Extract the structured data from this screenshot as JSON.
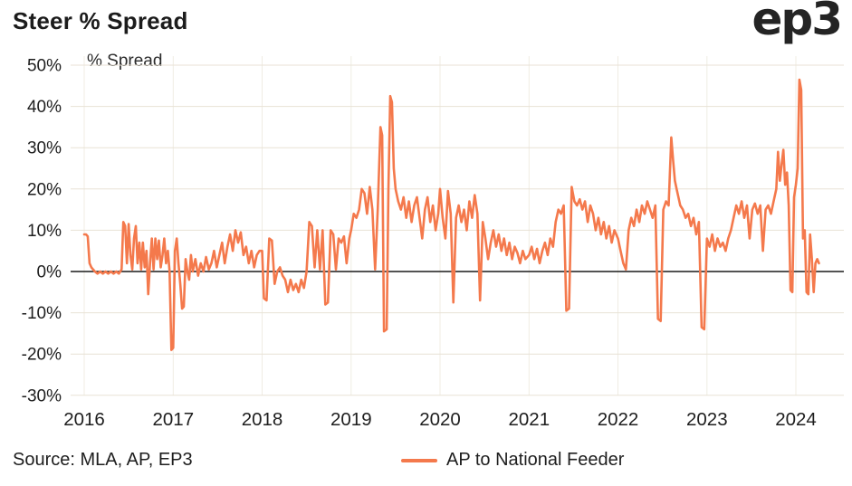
{
  "header": {
    "title": "Steer % Spread",
    "logo": "ep3"
  },
  "colors": {
    "line": "#F4794C",
    "grid": "#E8E2D6",
    "grid_vertical": "#F0ECE3",
    "axis": "#1A1A1A",
    "text": "#1E1E1E"
  },
  "footer": {
    "source": "Source: MLA, AP, EP3",
    "legend_label": "AP to National Feeder"
  },
  "chart_data": {
    "type": "line",
    "title": "Steer % Spread",
    "ylabel": "% Spread",
    "xlabel": "",
    "ylim": [
      -30,
      50
    ],
    "grid": "horizontal",
    "zero_line": true,
    "legend_position": "bottom-center",
    "legend": [
      "AP to National Feeder"
    ],
    "y_ticks": {
      "values": [
        50,
        40,
        30,
        20,
        10,
        0,
        -10,
        -20,
        -30
      ],
      "labels": [
        "50%",
        "40%",
        "30%",
        "20%",
        "10%",
        "0%",
        "-10%",
        "-20%",
        "-30%"
      ]
    },
    "x_ticks": {
      "values": [
        2016,
        2017,
        2018,
        2019,
        2020,
        2021,
        2022,
        2023,
        2024
      ],
      "labels": [
        "2016",
        "2017",
        "2018",
        "2019",
        "2020",
        "2021",
        "2022",
        "2023",
        "2024"
      ]
    },
    "series": [
      {
        "name": "AP to National Feeder",
        "color": "#F4794C",
        "points": [
          [
            2016.0,
            9
          ],
          [
            2016.02,
            9
          ],
          [
            2016.04,
            8.5
          ],
          [
            2016.06,
            2
          ],
          [
            2016.08,
            1
          ],
          [
            2016.1,
            0.5
          ],
          [
            2016.12,
            0
          ],
          [
            2016.15,
            -0.5
          ],
          [
            2016.18,
            0
          ],
          [
            2016.21,
            -0.5
          ],
          [
            2016.24,
            0
          ],
          [
            2016.27,
            -0.5
          ],
          [
            2016.3,
            0
          ],
          [
            2016.33,
            -0.5
          ],
          [
            2016.36,
            0
          ],
          [
            2016.39,
            -0.5
          ],
          [
            2016.42,
            0.5
          ],
          [
            2016.44,
            12
          ],
          [
            2016.46,
            11
          ],
          [
            2016.48,
            2
          ],
          [
            2016.5,
            11.5
          ],
          [
            2016.52,
            4
          ],
          [
            2016.54,
            0.5
          ],
          [
            2016.56,
            8
          ],
          [
            2016.58,
            11
          ],
          [
            2016.6,
            2
          ],
          [
            2016.62,
            7
          ],
          [
            2016.64,
            0.5
          ],
          [
            2016.66,
            7
          ],
          [
            2016.68,
            1
          ],
          [
            2016.7,
            5
          ],
          [
            2016.72,
            -5.5
          ],
          [
            2016.74,
            2
          ],
          [
            2016.76,
            8
          ],
          [
            2016.78,
            0.5
          ],
          [
            2016.8,
            8
          ],
          [
            2016.82,
            3
          ],
          [
            2016.84,
            7.5
          ],
          [
            2016.86,
            1
          ],
          [
            2016.88,
            4
          ],
          [
            2016.9,
            8
          ],
          [
            2016.92,
            2
          ],
          [
            2016.94,
            5
          ],
          [
            2016.96,
            0
          ],
          [
            2016.98,
            -19
          ],
          [
            2017.0,
            -18.5
          ],
          [
            2017.02,
            5
          ],
          [
            2017.04,
            8
          ],
          [
            2017.06,
            2
          ],
          [
            2017.08,
            -3
          ],
          [
            2017.1,
            -9
          ],
          [
            2017.12,
            -8.5
          ],
          [
            2017.14,
            3
          ],
          [
            2017.16,
            0
          ],
          [
            2017.18,
            -2
          ],
          [
            2017.2,
            4
          ],
          [
            2017.22,
            0
          ],
          [
            2017.25,
            3
          ],
          [
            2017.28,
            -1
          ],
          [
            2017.31,
            2
          ],
          [
            2017.34,
            0
          ],
          [
            2017.37,
            3.5
          ],
          [
            2017.4,
            0.5
          ],
          [
            2017.43,
            2
          ],
          [
            2017.46,
            5
          ],
          [
            2017.49,
            1
          ],
          [
            2017.52,
            4
          ],
          [
            2017.55,
            7
          ],
          [
            2017.58,
            2
          ],
          [
            2017.61,
            6
          ],
          [
            2017.64,
            9
          ],
          [
            2017.67,
            5
          ],
          [
            2017.7,
            10
          ],
          [
            2017.73,
            7
          ],
          [
            2017.76,
            9.5
          ],
          [
            2017.79,
            4
          ],
          [
            2017.82,
            6
          ],
          [
            2017.85,
            2
          ],
          [
            2017.88,
            5
          ],
          [
            2017.91,
            1
          ],
          [
            2017.94,
            4
          ],
          [
            2017.97,
            5
          ],
          [
            2018.0,
            5
          ],
          [
            2018.02,
            -6.5
          ],
          [
            2018.05,
            -7
          ],
          [
            2018.08,
            8
          ],
          [
            2018.11,
            7.5
          ],
          [
            2018.14,
            -3
          ],
          [
            2018.17,
            0
          ],
          [
            2018.2,
            1
          ],
          [
            2018.23,
            -1
          ],
          [
            2018.26,
            -2
          ],
          [
            2018.29,
            -5
          ],
          [
            2018.32,
            -2
          ],
          [
            2018.35,
            -4.5
          ],
          [
            2018.38,
            -3
          ],
          [
            2018.41,
            -5
          ],
          [
            2018.44,
            -2
          ],
          [
            2018.47,
            -4
          ],
          [
            2018.5,
            0
          ],
          [
            2018.53,
            12
          ],
          [
            2018.56,
            11
          ],
          [
            2018.59,
            1
          ],
          [
            2018.62,
            10
          ],
          [
            2018.65,
            0.5
          ],
          [
            2018.68,
            10
          ],
          [
            2018.71,
            -8
          ],
          [
            2018.74,
            -7.5
          ],
          [
            2018.77,
            10
          ],
          [
            2018.8,
            9
          ],
          [
            2018.83,
            0.5
          ],
          [
            2018.86,
            8
          ],
          [
            2018.89,
            7
          ],
          [
            2018.92,
            8.5
          ],
          [
            2018.95,
            2
          ],
          [
            2018.98,
            8
          ],
          [
            2019.0,
            10
          ],
          [
            2019.03,
            14
          ],
          [
            2019.06,
            13
          ],
          [
            2019.09,
            15
          ],
          [
            2019.12,
            20
          ],
          [
            2019.15,
            19
          ],
          [
            2019.18,
            14
          ],
          [
            2019.21,
            20.5
          ],
          [
            2019.24,
            15
          ],
          [
            2019.27,
            0.5
          ],
          [
            2019.3,
            15
          ],
          [
            2019.33,
            35
          ],
          [
            2019.35,
            33
          ],
          [
            2019.37,
            -14.5
          ],
          [
            2019.4,
            -14
          ],
          [
            2019.42,
            20
          ],
          [
            2019.44,
            42.5
          ],
          [
            2019.46,
            41
          ],
          [
            2019.48,
            25
          ],
          [
            2019.5,
            20
          ],
          [
            2019.53,
            17
          ],
          [
            2019.56,
            15
          ],
          [
            2019.59,
            18
          ],
          [
            2019.62,
            13
          ],
          [
            2019.65,
            17
          ],
          [
            2019.68,
            12
          ],
          [
            2019.71,
            16
          ],
          [
            2019.74,
            18
          ],
          [
            2019.77,
            13
          ],
          [
            2019.8,
            8
          ],
          [
            2019.83,
            15
          ],
          [
            2019.86,
            18
          ],
          [
            2019.89,
            12
          ],
          [
            2019.92,
            16
          ],
          [
            2019.95,
            10
          ],
          [
            2019.98,
            14
          ],
          [
            2020.0,
            20
          ],
          [
            2020.03,
            13
          ],
          [
            2020.06,
            8
          ],
          [
            2020.09,
            19.5
          ],
          [
            2020.12,
            14
          ],
          [
            2020.15,
            -7.5
          ],
          [
            2020.18,
            13
          ],
          [
            2020.21,
            16
          ],
          [
            2020.24,
            12
          ],
          [
            2020.27,
            15
          ],
          [
            2020.3,
            10
          ],
          [
            2020.33,
            17
          ],
          [
            2020.36,
            13
          ],
          [
            2020.39,
            18.5
          ],
          [
            2020.42,
            14
          ],
          [
            2020.45,
            -7
          ],
          [
            2020.48,
            12
          ],
          [
            2020.51,
            8
          ],
          [
            2020.54,
            3
          ],
          [
            2020.57,
            7
          ],
          [
            2020.6,
            10
          ],
          [
            2020.63,
            6
          ],
          [
            2020.66,
            9
          ],
          [
            2020.69,
            5
          ],
          [
            2020.72,
            8
          ],
          [
            2020.75,
            4
          ],
          [
            2020.78,
            7
          ],
          [
            2020.81,
            3
          ],
          [
            2020.84,
            6
          ],
          [
            2020.87,
            4.5
          ],
          [
            2020.9,
            2
          ],
          [
            2020.93,
            5
          ],
          [
            2020.96,
            3
          ],
          [
            2021.0,
            4
          ],
          [
            2021.03,
            6
          ],
          [
            2021.06,
            3
          ],
          [
            2021.09,
            5.5
          ],
          [
            2021.12,
            2
          ],
          [
            2021.15,
            5
          ],
          [
            2021.18,
            7
          ],
          [
            2021.21,
            4
          ],
          [
            2021.24,
            8
          ],
          [
            2021.27,
            6
          ],
          [
            2021.3,
            12
          ],
          [
            2021.33,
            15
          ],
          [
            2021.36,
            14
          ],
          [
            2021.39,
            16
          ],
          [
            2021.42,
            -9.5
          ],
          [
            2021.45,
            -9
          ],
          [
            2021.48,
            20.5
          ],
          [
            2021.51,
            17
          ],
          [
            2021.54,
            16
          ],
          [
            2021.57,
            17.5
          ],
          [
            2021.6,
            15
          ],
          [
            2021.63,
            17
          ],
          [
            2021.66,
            12
          ],
          [
            2021.69,
            16
          ],
          [
            2021.72,
            14
          ],
          [
            2021.75,
            10
          ],
          [
            2021.78,
            13
          ],
          [
            2021.81,
            9
          ],
          [
            2021.84,
            12
          ],
          [
            2021.87,
            8
          ],
          [
            2021.9,
            11
          ],
          [
            2021.93,
            7
          ],
          [
            2021.96,
            10
          ],
          [
            2022.0,
            8
          ],
          [
            2022.03,
            5
          ],
          [
            2022.06,
            2
          ],
          [
            2022.09,
            0.5
          ],
          [
            2022.12,
            10
          ],
          [
            2022.15,
            13
          ],
          [
            2022.18,
            11
          ],
          [
            2022.21,
            15
          ],
          [
            2022.24,
            12
          ],
          [
            2022.27,
            16
          ],
          [
            2022.3,
            14
          ],
          [
            2022.33,
            17
          ],
          [
            2022.36,
            15
          ],
          [
            2022.39,
            13
          ],
          [
            2022.42,
            16
          ],
          [
            2022.45,
            -11.5
          ],
          [
            2022.48,
            -12
          ],
          [
            2022.51,
            15
          ],
          [
            2022.54,
            17
          ],
          [
            2022.57,
            16
          ],
          [
            2022.6,
            32.5
          ],
          [
            2022.62,
            27
          ],
          [
            2022.64,
            22
          ],
          [
            2022.66,
            20
          ],
          [
            2022.68,
            18
          ],
          [
            2022.7,
            16
          ],
          [
            2022.73,
            15
          ],
          [
            2022.76,
            13
          ],
          [
            2022.79,
            14
          ],
          [
            2022.82,
            11
          ],
          [
            2022.85,
            13
          ],
          [
            2022.88,
            9
          ],
          [
            2022.91,
            12
          ],
          [
            2022.94,
            -13.5
          ],
          [
            2022.97,
            -14
          ],
          [
            2023.0,
            8
          ],
          [
            2023.03,
            6
          ],
          [
            2023.06,
            9
          ],
          [
            2023.09,
            5
          ],
          [
            2023.12,
            8
          ],
          [
            2023.15,
            6
          ],
          [
            2023.18,
            7
          ],
          [
            2023.21,
            5
          ],
          [
            2023.24,
            8
          ],
          [
            2023.27,
            10
          ],
          [
            2023.3,
            13
          ],
          [
            2023.33,
            16
          ],
          [
            2023.36,
            14
          ],
          [
            2023.39,
            17
          ],
          [
            2023.42,
            13
          ],
          [
            2023.45,
            16
          ],
          [
            2023.48,
            8
          ],
          [
            2023.51,
            15
          ],
          [
            2023.54,
            16.5
          ],
          [
            2023.57,
            14
          ],
          [
            2023.6,
            16
          ],
          [
            2023.63,
            5
          ],
          [
            2023.66,
            15
          ],
          [
            2023.69,
            16
          ],
          [
            2023.72,
            14
          ],
          [
            2023.75,
            17
          ],
          [
            2023.78,
            20
          ],
          [
            2023.8,
            29
          ],
          [
            2023.82,
            22
          ],
          [
            2023.84,
            26
          ],
          [
            2023.86,
            29.5
          ],
          [
            2023.88,
            21
          ],
          [
            2023.9,
            24
          ],
          [
            2023.92,
            16
          ],
          [
            2023.94,
            -4.5
          ],
          [
            2023.96,
            -5
          ],
          [
            2023.98,
            18
          ],
          [
            2024.0,
            21
          ],
          [
            2024.02,
            25
          ],
          [
            2024.04,
            46.5
          ],
          [
            2024.06,
            44
          ],
          [
            2024.08,
            8
          ],
          [
            2024.1,
            10
          ],
          [
            2024.12,
            -5
          ],
          [
            2024.14,
            -5.5
          ],
          [
            2024.16,
            9
          ],
          [
            2024.18,
            3
          ],
          [
            2024.2,
            -5
          ],
          [
            2024.22,
            2
          ],
          [
            2024.24,
            3
          ],
          [
            2024.26,
            2
          ]
        ]
      }
    ]
  }
}
